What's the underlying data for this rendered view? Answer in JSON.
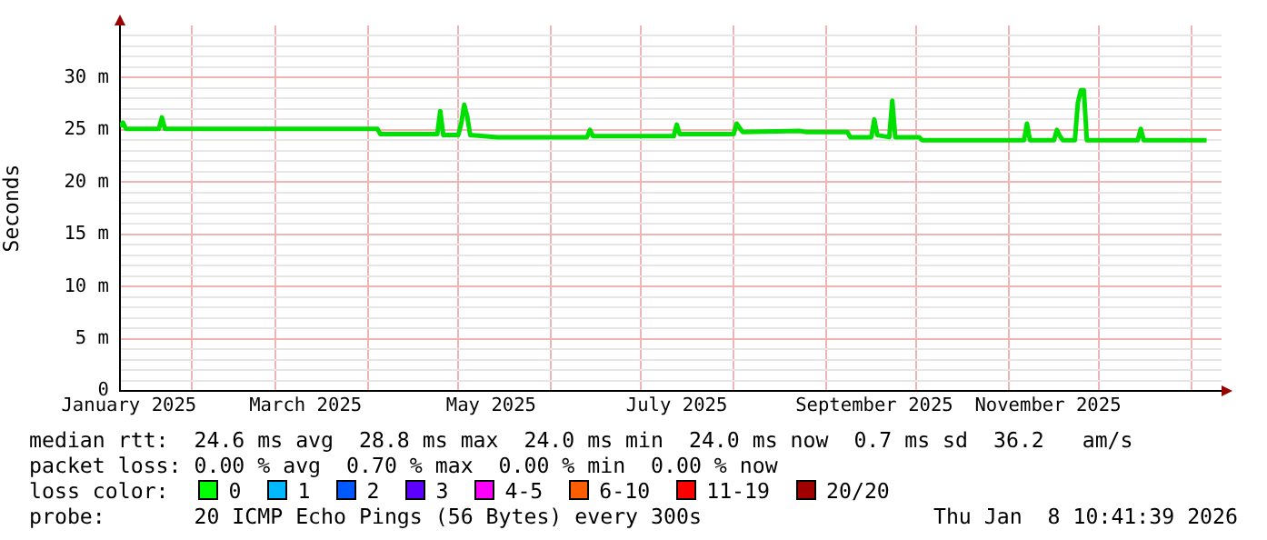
{
  "chart_data": {
    "type": "line",
    "ylabel": "Seconds",
    "x": [
      "2025-01-08",
      "2025-01-09",
      "2025-01-10",
      "2025-01-21",
      "2025-01-22",
      "2025-01-23",
      "2025-04-04",
      "2025-04-05",
      "2025-04-24",
      "2025-04-25",
      "2025-04-26",
      "2025-05-01",
      "2025-05-02",
      "2025-05-03",
      "2025-05-04",
      "2025-05-05",
      "2025-05-14",
      "2025-06-13",
      "2025-06-14",
      "2025-06-15",
      "2025-07-12",
      "2025-07-13",
      "2025-07-14",
      "2025-08-01",
      "2025-08-02",
      "2025-08-04",
      "2025-08-23",
      "2025-08-25",
      "2025-09-08",
      "2025-09-09",
      "2025-09-16",
      "2025-09-17",
      "2025-09-18",
      "2025-09-22",
      "2025-09-23",
      "2025-09-24",
      "2025-10-02",
      "2025-10-03",
      "2025-11-06",
      "2025-11-07",
      "2025-11-08",
      "2025-11-16",
      "2025-11-17",
      "2025-11-18",
      "2025-11-19",
      "2025-11-23",
      "2025-11-24",
      "2025-11-25",
      "2025-11-26",
      "2025-11-27",
      "2025-12-14",
      "2025-12-15",
      "2025-12-16",
      "2026-01-06"
    ],
    "series": [
      {
        "color": "#00e000",
        "values": [
          25.3,
          25.7,
          25.1,
          25.1,
          26.2,
          25.1,
          25.1,
          24.6,
          24.6,
          26.8,
          24.5,
          24.5,
          25.6,
          27.4,
          26.3,
          24.5,
          24.3,
          24.3,
          25.0,
          24.4,
          24.4,
          25.5,
          24.6,
          24.6,
          25.6,
          24.8,
          24.9,
          24.8,
          24.8,
          24.3,
          24.3,
          26.0,
          24.5,
          24.3,
          27.8,
          24.3,
          24.3,
          24.0,
          24.0,
          25.6,
          24.0,
          24.0,
          25.0,
          24.4,
          24.0,
          24.0,
          27.6,
          28.8,
          28.8,
          24.0,
          24.0,
          25.1,
          24.0,
          24.0
        ]
      }
    ],
    "xlim": [
      "2025-01-08",
      "2026-01-11"
    ],
    "xticks": [
      {
        "value": "2025-01-11",
        "label": "January 2025"
      },
      {
        "value": "2025-03-11",
        "label": "March 2025"
      },
      {
        "value": "2025-05-12",
        "label": "May 2025"
      },
      {
        "value": "2025-07-13",
        "label": "July 2025"
      },
      {
        "value": "2025-09-17",
        "label": "September 2025"
      },
      {
        "value": "2025-11-14",
        "label": "November 2025"
      },
      {
        "value": "2025-02-01",
        "label": null
      },
      {
        "value": "2025-03-01",
        "label": null
      },
      {
        "value": "2025-04-01",
        "label": null
      },
      {
        "value": "2025-05-01",
        "label": null
      },
      {
        "value": "2025-06-01",
        "label": null
      },
      {
        "value": "2025-07-01",
        "label": null
      },
      {
        "value": "2025-08-01",
        "label": null
      },
      {
        "value": "2025-09-01",
        "label": null
      },
      {
        "value": "2025-10-01",
        "label": null
      },
      {
        "value": "2025-11-01",
        "label": null
      },
      {
        "value": "2025-12-01",
        "label": null
      },
      {
        "value": "2026-01-01",
        "label": null
      }
    ],
    "ylim": [
      0,
      35
    ],
    "yticks": [
      0,
      {
        "value": 5,
        "label": "5 m"
      },
      {
        "value": 10,
        "label": "10 m"
      },
      {
        "value": 15,
        "label": "15 m"
      },
      {
        "value": 20,
        "label": "20 m"
      },
      {
        "value": 25,
        "label": "25 m"
      },
      {
        "value": 30,
        "label": "30 m"
      },
      {
        "value": 1,
        "label": null
      },
      {
        "value": 2,
        "label": null
      },
      {
        "value": 3,
        "label": null
      },
      {
        "value": 4,
        "label": null
      },
      {
        "value": 6,
        "label": null
      },
      {
        "value": 7,
        "label": null
      },
      {
        "value": 8,
        "label": null
      },
      {
        "value": 9,
        "label": null
      },
      {
        "value": 11,
        "label": null
      },
      {
        "value": 12,
        "label": null
      },
      {
        "value": 13,
        "label": null
      },
      {
        "value": 14,
        "label": null
      },
      {
        "value": 16,
        "label": null
      },
      {
        "value": 17,
        "label": null
      },
      {
        "value": 18,
        "label": null
      },
      {
        "value": 19,
        "label": null
      },
      {
        "value": 21,
        "label": null
      },
      {
        "value": 22,
        "label": null
      },
      {
        "value": 23,
        "label": null
      },
      {
        "value": 24,
        "label": null
      },
      {
        "value": 26,
        "label": null
      },
      {
        "value": 27,
        "label": null
      },
      {
        "value": 28,
        "label": null
      },
      {
        "value": 29,
        "label": null
      },
      {
        "value": 31,
        "label": null
      },
      {
        "value": 32,
        "label": null
      },
      {
        "value": 33,
        "label": null
      },
      {
        "value": 34,
        "label": null
      }
    ],
    "grid": true,
    "marker": "none",
    "line_style": "solid",
    "annotations": [
      "median rtt:  24.6 ms avg  28.8 ms max  24.0 ms min  24.0 ms now  0.7 ms sd  36.2   am/s",
      "packet loss: 0.00 % avg  0.70 % max  0.00 % min  0.00 % now",
      "loss color:",
      "0",
      "1",
      "2",
      "3",
      "4-5",
      "6-10",
      "11-19",
      "20/20",
      "probe:       20 ICMP Echo Pings (56 Bytes) every 300s",
      "Thu Jan  8 10:41:39 2026"
    ]
  }
}
